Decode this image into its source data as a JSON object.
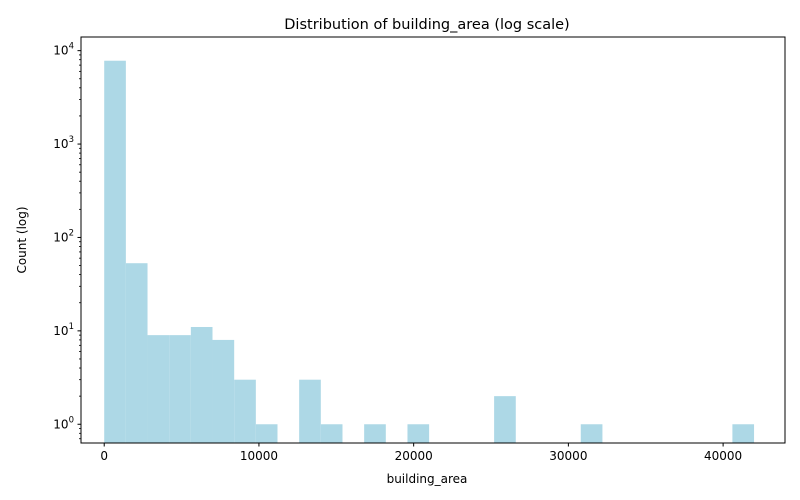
{
  "chart_data": {
    "type": "bar",
    "title": "Distribution of building_area (log scale)",
    "xlabel": "building_area",
    "ylabel": "Count (log)",
    "y_scale": "log",
    "bar_color": "#add8e6",
    "xlim": [
      -1500,
      44000
    ],
    "ylim": [
      0.63,
      14000
    ],
    "x_ticks": [
      {
        "value": 0,
        "label": "0"
      },
      {
        "value": 10000,
        "label": "10000"
      },
      {
        "value": 20000,
        "label": "20000"
      },
      {
        "value": 30000,
        "label": "30000"
      },
      {
        "value": 40000,
        "label": "40000"
      }
    ],
    "y_ticks": [
      {
        "value": 1,
        "base": "10",
        "exp": "0"
      },
      {
        "value": 10,
        "base": "10",
        "exp": "1"
      },
      {
        "value": 100,
        "base": "10",
        "exp": "2"
      },
      {
        "value": 1000,
        "base": "10",
        "exp": "3"
      },
      {
        "value": 10000,
        "base": "10",
        "exp": "4"
      }
    ],
    "bins": [
      {
        "x0": 0,
        "x1": 1400,
        "count": 7800
      },
      {
        "x0": 1400,
        "x1": 2800,
        "count": 53
      },
      {
        "x0": 2800,
        "x1": 4200,
        "count": 9
      },
      {
        "x0": 4200,
        "x1": 5600,
        "count": 9
      },
      {
        "x0": 5600,
        "x1": 7000,
        "count": 11
      },
      {
        "x0": 7000,
        "x1": 8400,
        "count": 8
      },
      {
        "x0": 8400,
        "x1": 9800,
        "count": 3
      },
      {
        "x0": 9800,
        "x1": 11200,
        "count": 1
      },
      {
        "x0": 12600,
        "x1": 14000,
        "count": 3
      },
      {
        "x0": 14000,
        "x1": 15400,
        "count": 1
      },
      {
        "x0": 16800,
        "x1": 18200,
        "count": 1
      },
      {
        "x0": 19600,
        "x1": 21000,
        "count": 1
      },
      {
        "x0": 25200,
        "x1": 26600,
        "count": 2
      },
      {
        "x0": 30800,
        "x1": 32200,
        "count": 1
      },
      {
        "x0": 40600,
        "x1": 42000,
        "count": 1
      }
    ]
  }
}
